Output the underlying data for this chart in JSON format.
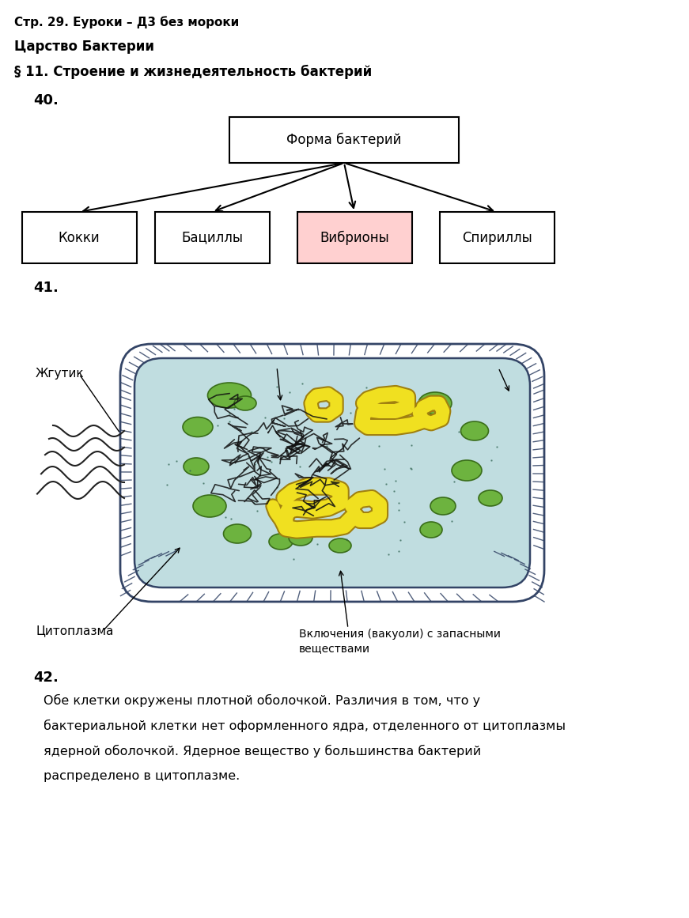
{
  "bg_color": "#ffffff",
  "header": "Стр. 29. Еуроки – Д3 без мороки",
  "subtitle": "Царство Бактерии",
  "section": "§ 11. Строение и жизнедеятельность бактерий",
  "task40_label": "40.",
  "task41_label": "41.",
  "task42_label": "42.",
  "root_box_text": "Форма бактерий",
  "child_boxes": [
    "Кокки",
    "Бациллы",
    "Вибрионы",
    "Спириллы"
  ],
  "vibrionly_bg": "#ffd0d0",
  "cell_fill": "#c8e8e8",
  "cell_border": "#334466",
  "green_blob_fill": "#6db33f",
  "green_blob_edge": "#3a6e1a",
  "yellow_fill": "#f0e020",
  "yellow_edge": "#a08010",
  "nucleoid_color": "#111111",
  "tick_color": "#334466",
  "label_fontsize": 10,
  "text42_lines": [
    "Обе клетки окружены плотной оболочкой. Различия в том, что у",
    "бактериальной клетки нет оформленного ядра, отделенного от цитоплазмы",
    "ядерной оболочкой. Ядерное вещество у большинства бактерий",
    "распределено в цитоплазме."
  ]
}
